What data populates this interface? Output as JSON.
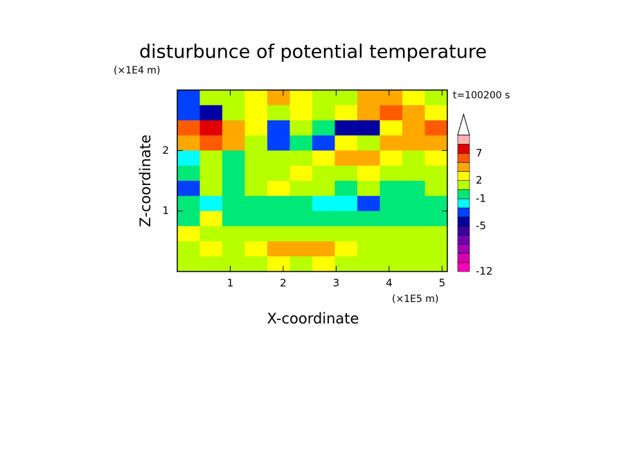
{
  "chart_data": {
    "type": "contour",
    "title": "disturbunce of potential temperature",
    "y_unit": "(×1E4 m)",
    "x_unit": "(×1E5 m)",
    "time_label": "t=100200 s",
    "xlabel": "X-coordinate",
    "ylabel": "Z-coordinate",
    "xlim": [
      0,
      5.1
    ],
    "ylim": [
      0,
      3
    ],
    "xticks": [
      1,
      2,
      3,
      4,
      5
    ],
    "yticks": [
      1,
      2
    ],
    "x": [
      0.2125,
      0.6375,
      1.0625,
      1.4875,
      1.9125,
      2.3375,
      2.7625,
      3.1875,
      3.6125,
      4.0375,
      4.4625,
      4.8875
    ],
    "z": [
      2.875,
      2.625,
      2.375,
      2.125,
      1.875,
      1.625,
      1.375,
      1.125,
      0.875,
      0.625,
      0.375,
      0.125
    ],
    "values": [
      [
        -4,
        0,
        1,
        2,
        3,
        2,
        0,
        1,
        3,
        4,
        2,
        1
      ],
      [
        -3,
        -5,
        1,
        2,
        1,
        2,
        0,
        2,
        3,
        5,
        3,
        2
      ],
      [
        5,
        7,
        4,
        2,
        -4,
        1,
        -1,
        -5,
        -5,
        2,
        4,
        5
      ],
      [
        4,
        5,
        3,
        1,
        -3,
        -1,
        -4,
        2,
        1,
        3,
        4,
        3
      ],
      [
        -2,
        1,
        -1,
        0,
        1,
        1,
        2,
        3,
        4,
        2,
        1,
        2
      ],
      [
        -1,
        0,
        -1,
        0,
        1,
        2,
        1,
        1,
        2,
        0,
        0,
        1
      ],
      [
        -4,
        0,
        -1,
        1,
        2,
        1,
        1,
        -1,
        0,
        -1,
        -1,
        0
      ],
      [
        -1,
        -2,
        -1,
        -1,
        -1,
        -1,
        -2,
        -2,
        -4,
        -1,
        -1,
        -1
      ],
      [
        -1,
        2,
        -1,
        -1,
        -1,
        -1,
        -1,
        -1,
        -1,
        -1,
        -1,
        -1
      ],
      [
        2,
        1,
        0,
        0,
        1,
        1,
        1,
        0,
        0,
        1,
        0,
        0
      ],
      [
        0,
        2,
        1,
        2,
        3,
        3,
        3,
        2,
        0,
        0,
        1,
        0
      ],
      [
        1,
        0,
        0,
        1,
        2,
        1,
        2,
        1,
        1,
        0,
        1,
        0
      ]
    ],
    "levels": [
      -12,
      -10,
      -8,
      -7,
      -6,
      -5,
      -4,
      -2,
      -1,
      0,
      2,
      3,
      5,
      7,
      9,
      11
    ],
    "colors": [
      "#ff00b8",
      "#d800b0",
      "#a400b4",
      "#7200b0",
      "#3a00a0",
      "#0000a0",
      "#0040ff",
      "#00ffff",
      "#00e878",
      "#b8ff00",
      "#ffff00",
      "#ffa800",
      "#ff5a00",
      "#e00000",
      "#ffb4b4"
    ],
    "over_color": "#ffffff",
    "cbar_ticks": [
      -12,
      -5,
      -1,
      2,
      7
    ]
  }
}
